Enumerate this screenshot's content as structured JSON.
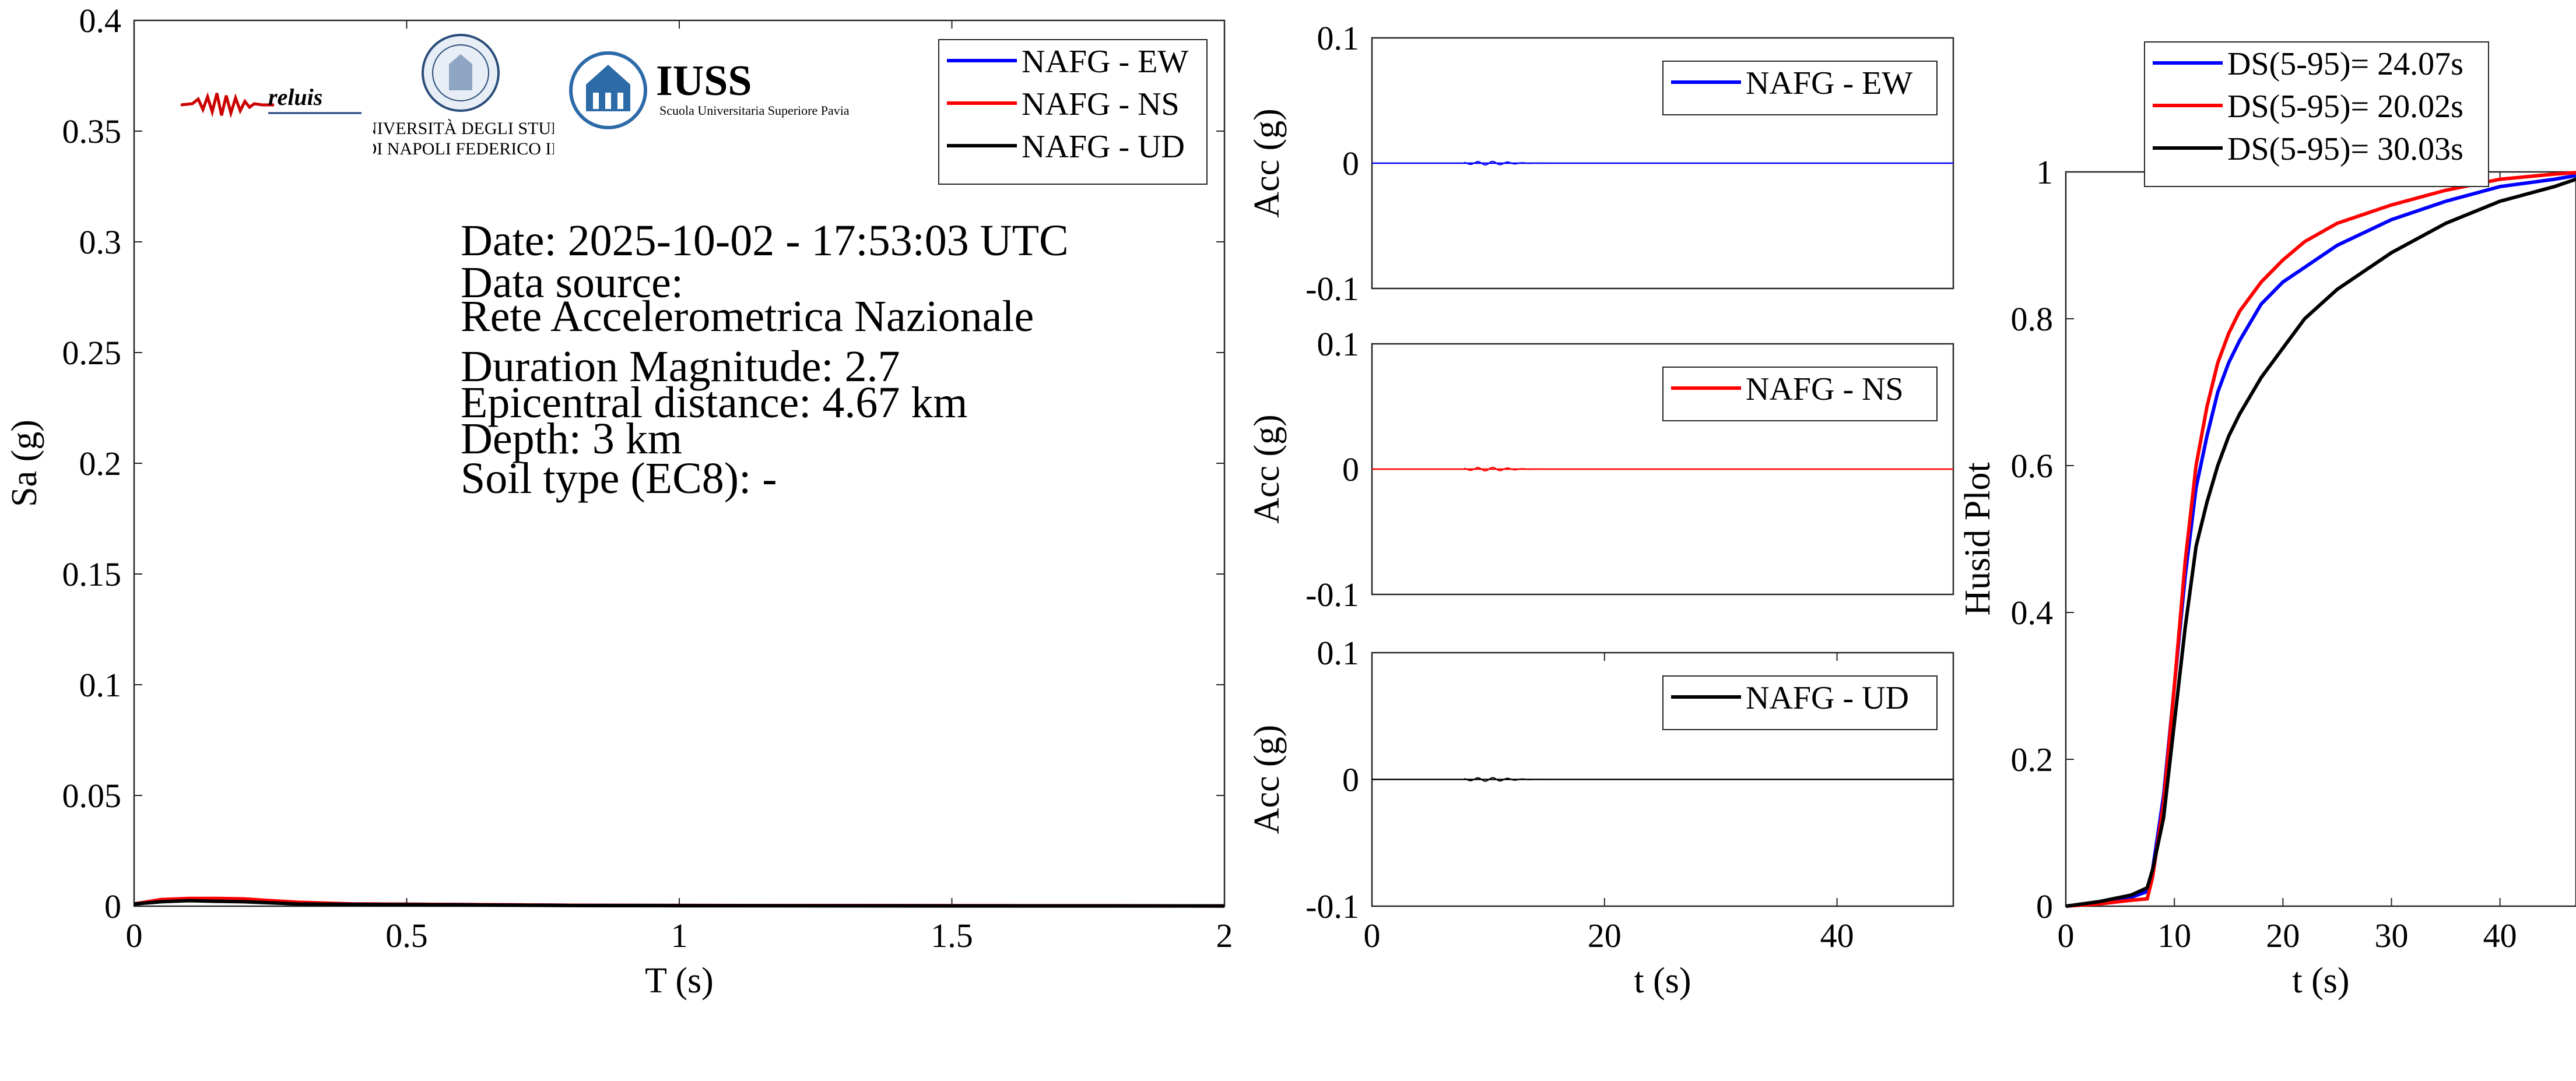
{
  "logos": {
    "reluis": "reluis",
    "unina_line1": "UNIVERSITÀ DEGLI STUDI",
    "unina_line2": "DI NAPOLI FEDERICO II",
    "iuss_title": "IUSS",
    "iuss_subtitle": "Scuola Universitaria Superiore Pavia"
  },
  "info_lines": [
    "Date: 2025-10-02 - 17:53:03 UTC",
    "Data source:",
    "Rete Accelerometrica Nazionale",
    "Duration Magnitude: 2.7",
    "Epicentral distance: 4.67 km",
    "Depth: 3 km",
    "Soil type (EC8): -"
  ],
  "colors": {
    "ew": "#0000ff",
    "ns": "#ff0000",
    "ud": "#000000"
  },
  "chart_data": [
    {
      "type": "line",
      "xlabel": "T (s)",
      "ylabel": "Sa (g)",
      "xlim": [
        0,
        2
      ],
      "ylim": [
        0,
        0.4
      ],
      "xticks": [
        "0",
        "0.5",
        "1",
        "1.5",
        "2"
      ],
      "yticks": [
        "0",
        "0.05",
        "0.1",
        "0.15",
        "0.2",
        "0.25",
        "0.3",
        "0.35",
        "0.4"
      ],
      "legend_position": "top-right",
      "series": [
        {
          "name": "NAFG - EW",
          "color": "#0000ff",
          "x": [
            0,
            0.05,
            0.1,
            0.15,
            0.2,
            0.25,
            0.3,
            0.4,
            0.6,
            0.8,
            1.0,
            1.5,
            2.0
          ],
          "y": [
            0.001,
            0.0025,
            0.003,
            0.003,
            0.0025,
            0.002,
            0.0015,
            0.001,
            0.0007,
            0.0004,
            0.0003,
            0.0002,
            0.0001
          ]
        },
        {
          "name": "NAFG - NS",
          "color": "#ff0000",
          "x": [
            0,
            0.05,
            0.1,
            0.15,
            0.2,
            0.25,
            0.3,
            0.4,
            0.6,
            0.8,
            1.0,
            1.5,
            2.0
          ],
          "y": [
            0.001,
            0.003,
            0.0035,
            0.0035,
            0.0033,
            0.0025,
            0.0018,
            0.001,
            0.0007,
            0.0004,
            0.0003,
            0.0002,
            0.0001
          ]
        },
        {
          "name": "NAFG - UD",
          "color": "#000000",
          "x": [
            0,
            0.05,
            0.1,
            0.15,
            0.2,
            0.25,
            0.3,
            0.4,
            0.6,
            0.8,
            1.0,
            1.5,
            2.0
          ],
          "y": [
            0.001,
            0.002,
            0.0025,
            0.0022,
            0.002,
            0.0015,
            0.001,
            0.0008,
            0.0006,
            0.0003,
            0.0002,
            0.0001,
            0.0001
          ]
        }
      ]
    },
    {
      "type": "line",
      "xlabel": "",
      "ylabel": "Acc (g)",
      "xlim": [
        0,
        50
      ],
      "ylim": [
        -0.1,
        0.1
      ],
      "yticks": [
        "0.1",
        "0",
        "-0.1"
      ],
      "legend_position": "top-right",
      "series": [
        {
          "name": "NAFG - EW",
          "color": "#0000ff",
          "x": [
            0,
            50
          ],
          "y": [
            0,
            0
          ]
        }
      ]
    },
    {
      "type": "line",
      "xlabel": "",
      "ylabel": "Acc (g)",
      "xlim": [
        0,
        50
      ],
      "ylim": [
        -0.1,
        0.1
      ],
      "yticks": [
        "0.1",
        "0",
        "-0.1"
      ],
      "legend_position": "top-right",
      "series": [
        {
          "name": "NAFG - NS",
          "color": "#ff0000",
          "x": [
            0,
            50
          ],
          "y": [
            0,
            0
          ]
        }
      ]
    },
    {
      "type": "line",
      "xlabel": "t (s)",
      "ylabel": "Acc (g)",
      "xlim": [
        0,
        50
      ],
      "ylim": [
        -0.1,
        0.1
      ],
      "xticks": [
        "0",
        "20",
        "40"
      ],
      "yticks": [
        "0.1",
        "0",
        "-0.1"
      ],
      "legend_position": "top-right",
      "series": [
        {
          "name": "NAFG - UD",
          "color": "#000000",
          "x": [
            0,
            50
          ],
          "y": [
            0,
            0
          ]
        }
      ]
    },
    {
      "type": "line",
      "xlabel": "t (s)",
      "ylabel": "Husid Plot",
      "xlim": [
        0,
        47
      ],
      "ylim": [
        0,
        1
      ],
      "xticks": [
        "0",
        "10",
        "20",
        "30",
        "40"
      ],
      "yticks": [
        "0",
        "0.2",
        "0.4",
        "0.6",
        "0.8",
        "1"
      ],
      "legend_position": "top (outside)",
      "series": [
        {
          "name": "DS(5-95)= 24.07s",
          "color": "#0000ff",
          "x": [
            0,
            3,
            6,
            7.5,
            8,
            9,
            10,
            11,
            12,
            13,
            14,
            15,
            16,
            18,
            20,
            22,
            25,
            30,
            35,
            40,
            45,
            47
          ],
          "y": [
            0,
            0.005,
            0.012,
            0.02,
            0.05,
            0.15,
            0.3,
            0.45,
            0.57,
            0.64,
            0.7,
            0.74,
            0.77,
            0.82,
            0.85,
            0.87,
            0.9,
            0.935,
            0.96,
            0.98,
            0.99,
            0.995
          ]
        },
        {
          "name": "DS(5-95)= 20.02s",
          "color": "#ff0000",
          "x": [
            0,
            3,
            6,
            7.5,
            8,
            9,
            10,
            11,
            12,
            13,
            14,
            15,
            16,
            18,
            20,
            22,
            25,
            30,
            35,
            40,
            45,
            47
          ],
          "y": [
            0,
            0.003,
            0.008,
            0.01,
            0.04,
            0.14,
            0.3,
            0.47,
            0.6,
            0.68,
            0.74,
            0.78,
            0.81,
            0.85,
            0.88,
            0.905,
            0.93,
            0.955,
            0.975,
            0.99,
            0.997,
            0.999
          ]
        },
        {
          "name": "DS(5-95)= 30.03s",
          "color": "#000000",
          "x": [
            0,
            3,
            6,
            7.5,
            8,
            9,
            10,
            11,
            12,
            13,
            14,
            15,
            16,
            18,
            20,
            22,
            25,
            30,
            35,
            40,
            45,
            47
          ],
          "y": [
            0,
            0.006,
            0.015,
            0.025,
            0.05,
            0.12,
            0.25,
            0.38,
            0.49,
            0.55,
            0.6,
            0.64,
            0.67,
            0.72,
            0.76,
            0.8,
            0.84,
            0.89,
            0.93,
            0.96,
            0.98,
            0.99
          ]
        }
      ]
    }
  ]
}
